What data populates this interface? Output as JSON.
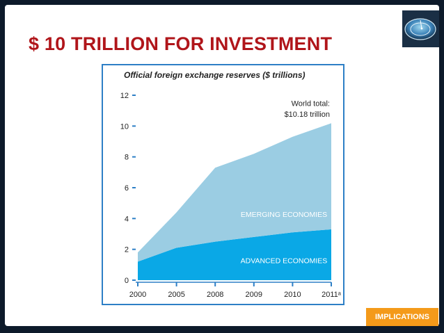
{
  "slide": {
    "title": "$ 10 TRILLION FOR INVESTMENT",
    "button_label": "IMPLICATIONS",
    "accent_title": "#b0151a",
    "accent_button": "#f49a1a"
  },
  "logo": {
    "icon": "globe-logo-icon"
  },
  "chart_data": {
    "type": "area",
    "stacked": true,
    "title": "Official foreign exchange reserves ($ trillions)",
    "categories": [
      "2000",
      "2005",
      "2008",
      "2009",
      "2010",
      "2011ᵃ"
    ],
    "ylim": [
      0,
      12
    ],
    "yticks": [
      0,
      2,
      4,
      6,
      8,
      10,
      12
    ],
    "grid": false,
    "series": [
      {
        "name": "ADVANCED ECONOMIES",
        "values": [
          1.2,
          2.1,
          2.5,
          2.8,
          3.1,
          3.3
        ],
        "color": "#0aa8e6"
      },
      {
        "name": "EMERGING ECONOMIES",
        "values": [
          0.6,
          2.3,
          4.8,
          5.4,
          6.2,
          6.88
        ],
        "color": "#9bcde3"
      }
    ],
    "annotation": {
      "line1": "World total:",
      "line2": "$10.18 trillion"
    },
    "frame_color": "#2d7fc6"
  }
}
